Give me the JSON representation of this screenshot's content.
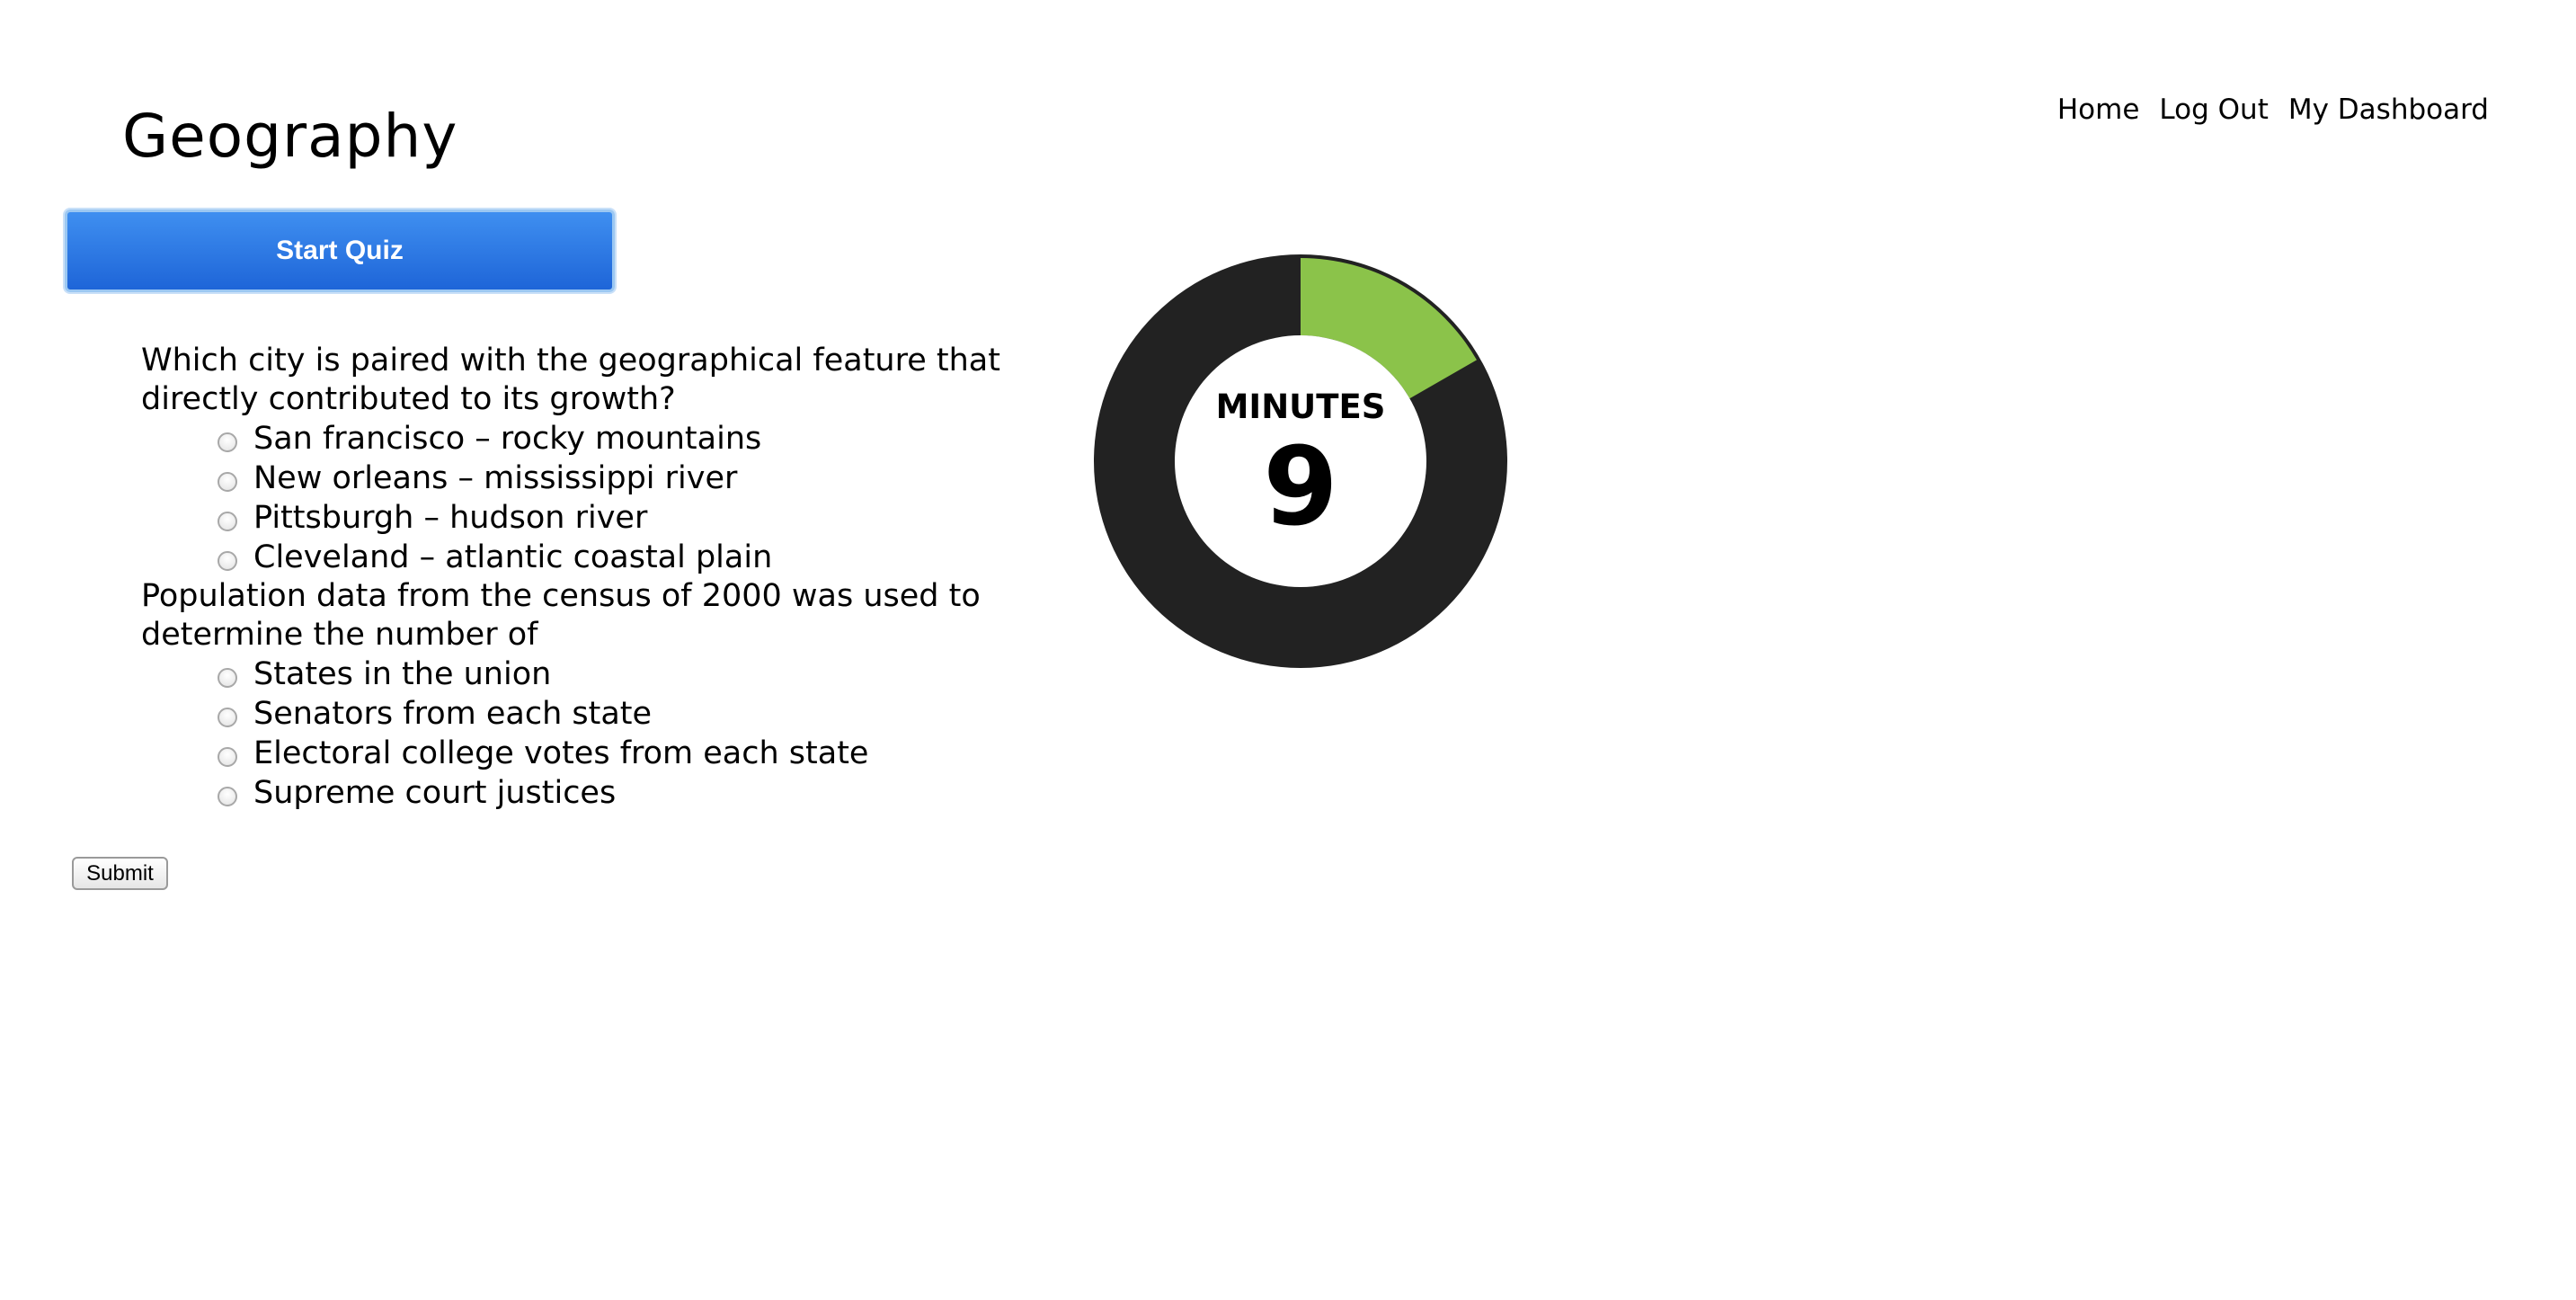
{
  "header": {
    "title": "Geography"
  },
  "nav": {
    "home": "Home",
    "logout": "Log Out",
    "dashboard": "My Dashboard"
  },
  "start_button": {
    "label": "Start Quiz"
  },
  "questions": [
    {
      "text": "Which city is paired with the geographical feature that directly contributed to its growth?",
      "options": [
        "San francisco – rocky mountains",
        "New orleans – mississippi river",
        "Pittsburgh – hudson river",
        "Cleveland – atlantic coastal plain"
      ]
    },
    {
      "text": "Population data from the census of 2000 was used to determine the number of",
      "options": [
        "States in the union",
        "Senators from each state",
        "Electoral college votes from each state",
        "Supreme court justices"
      ]
    }
  ],
  "submit": {
    "label": "Submit"
  },
  "timer": {
    "unit_label": "MINUTES",
    "value": "9",
    "elapsed_fraction": 0.167,
    "colors": {
      "ring": "#222222",
      "progress": "#8bc34a",
      "center": "#ffffff"
    }
  }
}
